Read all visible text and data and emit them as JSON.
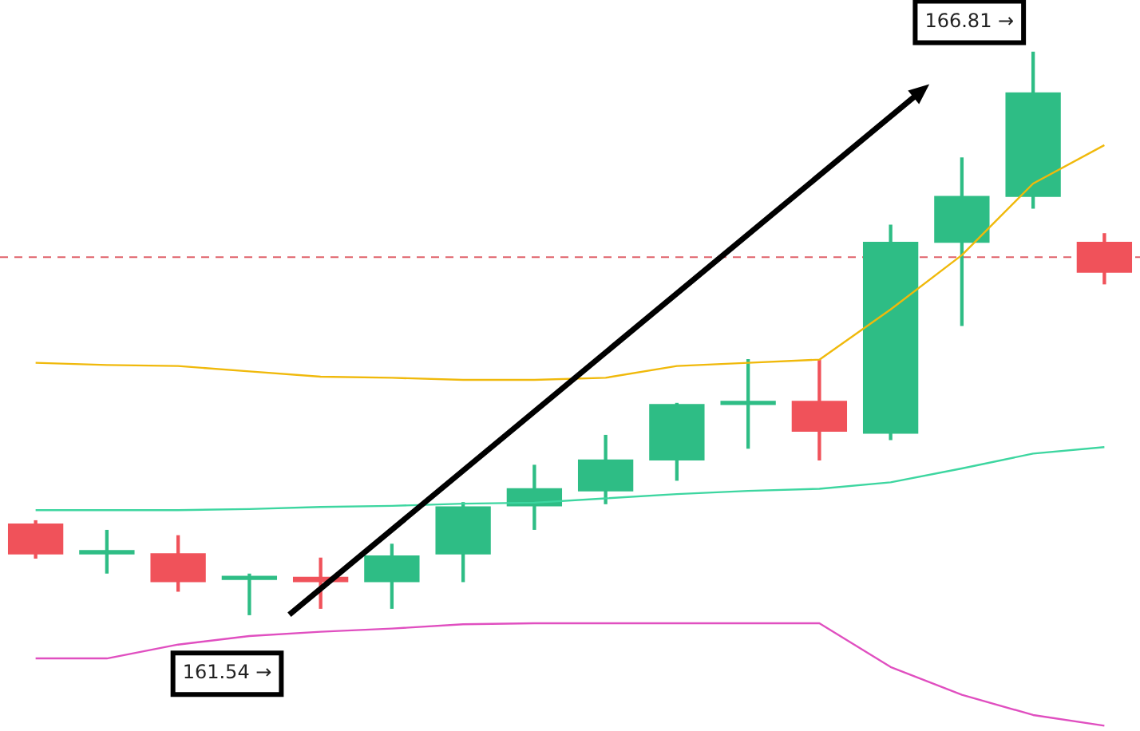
{
  "chart_data": {
    "type": "candlestick",
    "categories": [
      null,
      null,
      null,
      null,
      null,
      null,
      null,
      null,
      null,
      null,
      null,
      null,
      null,
      null,
      null,
      null
    ],
    "ohlc": [
      [
        162.39,
        162.42,
        162.07,
        162.11
      ],
      [
        162.11,
        162.33,
        161.93,
        162.14
      ],
      [
        162.11,
        162.28,
        161.76,
        161.85
      ],
      [
        161.87,
        161.92,
        161.54,
        161.89
      ],
      [
        161.89,
        162.07,
        161.6,
        161.85
      ],
      [
        161.85,
        162.2,
        161.6,
        162.09
      ],
      [
        162.11,
        162.59,
        161.85,
        162.55
      ],
      [
        162.56,
        162.94,
        162.34,
        162.72
      ],
      [
        162.7,
        163.22,
        162.58,
        162.99
      ],
      [
        162.99,
        163.52,
        162.8,
        163.51
      ],
      [
        163.51,
        163.93,
        163.1,
        163.54
      ],
      [
        163.54,
        163.93,
        162.99,
        163.26
      ],
      [
        163.24,
        165.19,
        163.18,
        165.03
      ],
      [
        165.03,
        165.82,
        164.25,
        165.46
      ],
      [
        165.46,
        166.81,
        165.35,
        166.43
      ],
      [
        165.03,
        165.11,
        164.64,
        164.75
      ]
    ],
    "colors": [
      "#f0525a",
      "#2ebd85",
      "#f0525a",
      "#2ebd85",
      "#f0525a",
      "#2ebd85",
      "#2ebd85",
      "#2ebd85",
      "#2ebd85",
      "#2ebd85",
      "#2ebd85",
      "#f0525a",
      "#2ebd85",
      "#2ebd85",
      "#2ebd85",
      "#f0525a"
    ],
    "series": [
      {
        "type": "line",
        "color": "#f0b90b",
        "values": [
          163.9,
          163.88,
          163.87,
          163.82,
          163.77,
          163.76,
          163.74,
          163.74,
          163.76,
          163.87,
          163.9,
          163.93,
          164.4,
          164.91,
          165.58,
          165.94
        ]
      },
      {
        "type": "line",
        "color": "#3dd6a0",
        "values": [
          162.52,
          162.52,
          162.52,
          162.53,
          162.55,
          162.56,
          162.58,
          162.59,
          162.63,
          162.67,
          162.7,
          162.72,
          162.78,
          162.91,
          163.05,
          163.11
        ]
      },
      {
        "type": "line",
        "color": "#e04fc0",
        "values": [
          161.13,
          161.13,
          161.26,
          161.34,
          161.38,
          161.41,
          161.45,
          161.46,
          161.46,
          161.46,
          161.46,
          161.46,
          161.05,
          160.79,
          160.6,
          160.5
        ]
      }
    ],
    "ylim": [
      160.45,
      167.3
    ],
    "ref_lines": [
      {
        "axis": "y",
        "value": 164.89,
        "color": "#e0626a",
        "line_style": "dashed"
      }
    ],
    "annotations": [
      "161.54 →",
      "166.81 →"
    ],
    "tick_labels": false,
    "grid": false,
    "legend": false
  }
}
